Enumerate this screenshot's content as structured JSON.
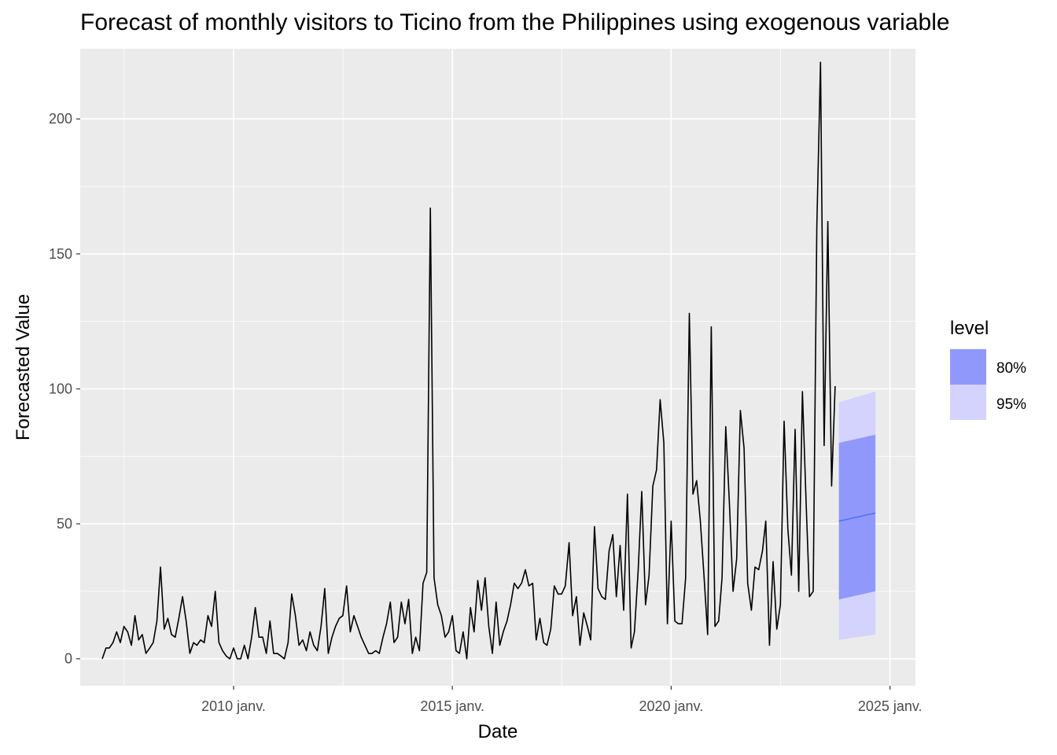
{
  "chart_data": {
    "type": "line",
    "title": "Forecast of monthly visitors to Ticino from the Philippines using exogenous variable",
    "xlabel": "Date",
    "ylabel": "Forecasted Value",
    "xlim": [
      "2006-07-01",
      "2025-08-01"
    ],
    "ylim": [
      -10,
      226
    ],
    "x_ticks": [
      {
        "date": "2010-01-01",
        "label": "2010 janv."
      },
      {
        "date": "2015-01-01",
        "label": "2015 janv."
      },
      {
        "date": "2020-01-01",
        "label": "2020 janv."
      },
      {
        "date": "2025-01-01",
        "label": "2025 janv."
      }
    ],
    "y_ticks": [
      0,
      50,
      100,
      150,
      200
    ],
    "grid": true,
    "legend": {
      "title": "level",
      "position": "right",
      "entries": [
        {
          "label": "80%",
          "color": "#9198fb"
        },
        {
          "label": "95%",
          "color": "#d3d3fe"
        }
      ]
    },
    "colors": {
      "panel": "#ebebeb",
      "grid": "#ffffff",
      "observed": "#000000",
      "forecast_mean": "#4b73f0",
      "band_80": "#9198fb",
      "band_95": "#d3d3fe"
    },
    "series": [
      {
        "start": "2007-01",
        "values": [
          0,
          4,
          4,
          6,
          10,
          6,
          12,
          10,
          5,
          16,
          7,
          9,
          2,
          4,
          6,
          14,
          34,
          11,
          15,
          9,
          8,
          15,
          23,
          14,
          2,
          6,
          5,
          7,
          6,
          16,
          12,
          25,
          6,
          3,
          1,
          0,
          4,
          0,
          0,
          5,
          0,
          8,
          19,
          8,
          8,
          2,
          14,
          2,
          2,
          1,
          0,
          6,
          24,
          16,
          5,
          7,
          3,
          10,
          5,
          3,
          12,
          26,
          2,
          8,
          12,
          15,
          16,
          27,
          10,
          16,
          12,
          8,
          5,
          2,
          2,
          3,
          2,
          8,
          13,
          21,
          6,
          8,
          21,
          13,
          22,
          2,
          8,
          3,
          28,
          32,
          167,
          30,
          20,
          16,
          8,
          10,
          16,
          3,
          2,
          10,
          0,
          19,
          10,
          29,
          18,
          30,
          12,
          2,
          21,
          5,
          10,
          14,
          20,
          28,
          26,
          28,
          33,
          27,
          28,
          7,
          15,
          6,
          5,
          11,
          27,
          24,
          24,
          27,
          43,
          16,
          23,
          5,
          17,
          12,
          7,
          49,
          26,
          23,
          22,
          40,
          46,
          23,
          42,
          18,
          61,
          4,
          10,
          33,
          62,
          20,
          31,
          64,
          70,
          96,
          80,
          13,
          51,
          14,
          13,
          13,
          30,
          128,
          61,
          66,
          51,
          31,
          9,
          123,
          12,
          14,
          30,
          86,
          58,
          25,
          37,
          92,
          78,
          28,
          18,
          34,
          33,
          40,
          51,
          5,
          36,
          11,
          20,
          88,
          48,
          31,
          85,
          25,
          99,
          57,
          23,
          25,
          160,
          221,
          79,
          162,
          64,
          101
        ]
      },
      {
        "name": "forecast",
        "start": "2023-11",
        "mean": [
          51,
          51.3,
          51.6,
          51.9,
          52.2,
          52.5,
          52.8,
          53.1,
          53.4,
          53.7,
          54
        ],
        "lo80": [
          22,
          22.3,
          22.6,
          22.9,
          23.2,
          23.5,
          23.8,
          24.1,
          24.4,
          24.7,
          25
        ],
        "hi80": [
          80,
          80.3,
          80.6,
          80.9,
          81.2,
          81.5,
          81.8,
          82.1,
          82.4,
          82.7,
          83
        ],
        "lo95": [
          7,
          7.2,
          7.4,
          7.6,
          7.8,
          8,
          8.2,
          8.4,
          8.6,
          8.8,
          9
        ],
        "hi95": [
          95,
          95.4,
          95.8,
          96.2,
          96.6,
          97,
          97.4,
          97.8,
          98.2,
          98.6,
          99
        ]
      }
    ]
  }
}
